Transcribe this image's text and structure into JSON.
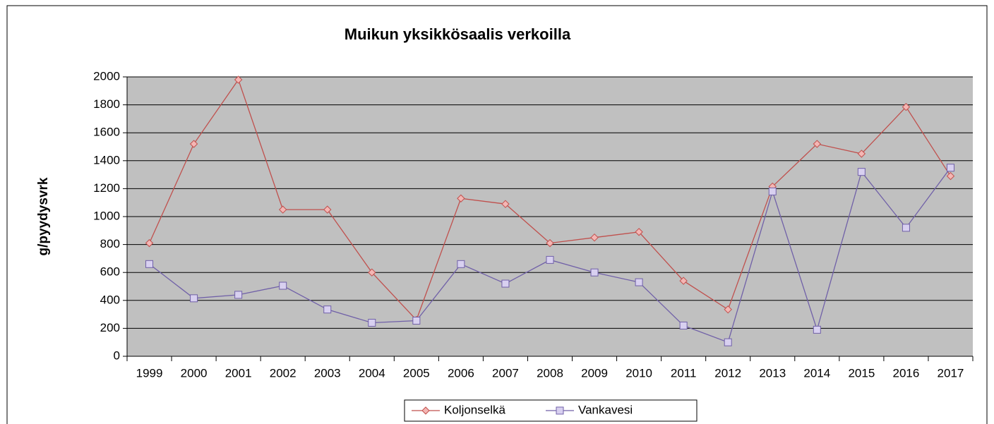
{
  "chart_data": {
    "type": "line",
    "title": "Muikun yksikkösaalis verkoilla",
    "y_label": "g/pyydysvrk",
    "categories": [
      "1999",
      "2000",
      "2001",
      "2002",
      "2003",
      "2004",
      "2005",
      "2006",
      "2007",
      "2008",
      "2009",
      "2010",
      "2011",
      "2012",
      "2013",
      "2014",
      "2015",
      "2016",
      "2017"
    ],
    "series": [
      {
        "name": "Koljonselkä",
        "color": "#c0504d",
        "marker_fill": "#f4b6b4",
        "marker": "diamond",
        "values": [
          810,
          1520,
          1980,
          1050,
          1050,
          600,
          260,
          1130,
          1090,
          810,
          850,
          890,
          540,
          335,
          1215,
          1520,
          1450,
          1785,
          1290
        ]
      },
      {
        "name": "Vankavesi",
        "color": "#7060a8",
        "marker_fill": "#d8d0f0",
        "marker": "square",
        "values": [
          660,
          415,
          440,
          505,
          335,
          240,
          255,
          660,
          520,
          690,
          600,
          530,
          220,
          100,
          1180,
          190,
          1320,
          920,
          1350
        ]
      }
    ],
    "ylim": [
      0,
      2000
    ],
    "yticks": [
      0,
      200,
      400,
      600,
      800,
      1000,
      1200,
      1400,
      1600,
      1800,
      2000
    ],
    "grid": true,
    "plot_background": "#c0c0c0",
    "legend": "bottom"
  }
}
